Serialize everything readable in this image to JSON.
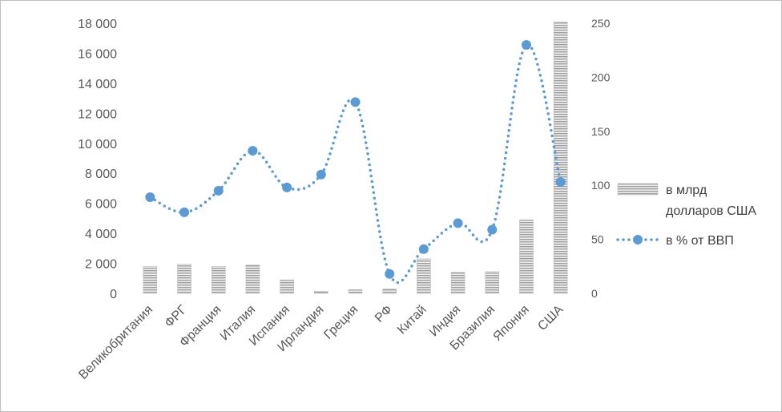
{
  "chart_data": {
    "type": "bar",
    "categories": [
      "Великобритания",
      "ФРГ",
      "Франция",
      "Италия",
      "Испания",
      "Ирландия",
      "Греция",
      "РФ",
      "Китай",
      "Индия",
      "Бразилия",
      "Япония",
      "США"
    ],
    "series": [
      {
        "name": "в млрд долларов США",
        "legend_lines": [
          "в млрд",
          "долларов США"
        ],
        "type": "bar",
        "axis": "left",
        "color": "#a6a6a6",
        "values": [
          1800,
          1950,
          1800,
          1900,
          900,
          150,
          250,
          300,
          2300,
          1400,
          1450,
          4900,
          18100
        ]
      },
      {
        "name": "в % от ВВП",
        "legend_lines": [
          "в % от ВВП"
        ],
        "type": "line",
        "axis": "right",
        "color": "#5b9bd5",
        "values": [
          89,
          75,
          95,
          132,
          98,
          110,
          177,
          18,
          41,
          65,
          59,
          230,
          103
        ]
      }
    ],
    "y_left": {
      "min": 0,
      "max": 18000,
      "step": 2000,
      "tick_labels": [
        "0",
        "2 000",
        "4 000",
        "6 000",
        "8 000",
        "10 000",
        "12 000",
        "14 000",
        "16 000",
        "18 000"
      ]
    },
    "y_right": {
      "min": 0,
      "max": 250,
      "step": 50,
      "tick_labels": [
        "0",
        "50",
        "100",
        "150",
        "200",
        "250"
      ]
    },
    "grid": false,
    "legend_position": "right"
  }
}
